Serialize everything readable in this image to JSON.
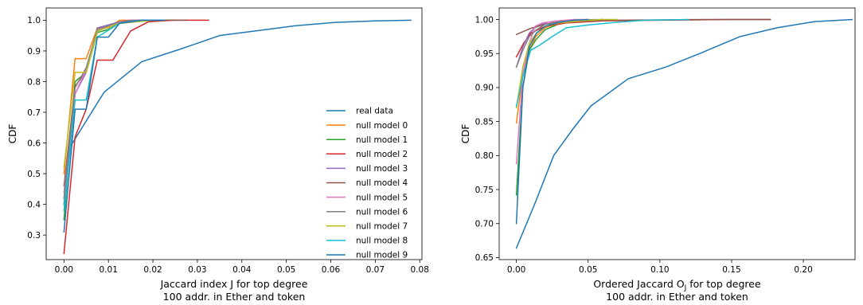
{
  "chart_data": [
    {
      "type": "line",
      "xlabel_line1": "Jaccard index J  for top degree",
      "xlabel_line2": "100 addr. in Ether and token",
      "ylabel": "CDF",
      "xlim": [
        -0.004,
        0.0805
      ],
      "ylim": [
        0.22,
        1.04
      ],
      "xticks": [
        0.0,
        0.01,
        0.02,
        0.03,
        0.04,
        0.05,
        0.06,
        0.07,
        0.08
      ],
      "xtick_labels": [
        "0.00",
        "0.01",
        "0.02",
        "0.03",
        "0.04",
        "0.05",
        "0.06",
        "0.07",
        "0.08"
      ],
      "yticks": [
        0.3,
        0.4,
        0.5,
        0.6,
        0.7,
        0.8,
        0.9,
        1.0
      ],
      "ytick_labels": [
        "0.3",
        "0.4",
        "0.5",
        "0.6",
        "0.7",
        "0.8",
        "0.9",
        "1.0"
      ],
      "legend_position": "lower-right",
      "grid": false,
      "series": [
        {
          "name": "real data",
          "color": "#1f77b4",
          "x": [
            0.0,
            0.0015,
            0.009,
            0.0175,
            0.026,
            0.035,
            0.043,
            0.052,
            0.061,
            0.07,
            0.078
          ],
          "y": [
            0.4,
            0.59,
            0.765,
            0.865,
            0.905,
            0.95,
            0.965,
            0.982,
            0.993,
            0.998,
            1.0
          ]
        },
        {
          "name": "null model 0",
          "color": "#ff7f0e",
          "x": [
            0.0,
            0.0025,
            0.005,
            0.0075,
            0.01,
            0.0125,
            0.015,
            0.023
          ],
          "y": [
            0.5,
            0.875,
            0.875,
            0.975,
            0.975,
            1.0,
            1.0,
            1.0
          ]
        },
        {
          "name": "null model 1",
          "color": "#2ca02c",
          "x": [
            0.0,
            0.0025,
            0.005,
            0.0075,
            0.01,
            0.0125,
            0.02,
            0.025
          ],
          "y": [
            0.35,
            0.8,
            0.83,
            0.96,
            0.97,
            0.99,
            1.0,
            1.0
          ]
        },
        {
          "name": "null model 2",
          "color": "#d62728",
          "x": [
            0.0,
            0.0025,
            0.005,
            0.0075,
            0.011,
            0.015,
            0.019,
            0.0245,
            0.0325
          ],
          "y": [
            0.24,
            0.62,
            0.71,
            0.87,
            0.87,
            0.965,
            0.995,
            1.0,
            1.0
          ]
        },
        {
          "name": "null model 3",
          "color": "#9467bd",
          "x": [
            0.0,
            0.0025,
            0.005,
            0.0075,
            0.0125,
            0.015,
            0.02
          ],
          "y": [
            0.42,
            0.76,
            0.83,
            0.975,
            0.995,
            1.0,
            1.0
          ]
        },
        {
          "name": "null model 4",
          "color": "#8c564b",
          "x": [
            0.0,
            0.0025,
            0.005,
            0.0075,
            0.0125,
            0.017,
            0.0275
          ],
          "y": [
            0.46,
            0.785,
            0.835,
            0.965,
            0.99,
            1.0,
            1.0
          ]
        },
        {
          "name": "null model 5",
          "color": "#e377c2",
          "x": [
            0.0,
            0.0025,
            0.005,
            0.0075,
            0.0125,
            0.0175,
            0.0225
          ],
          "y": [
            0.44,
            0.76,
            0.84,
            0.965,
            0.995,
            1.0,
            1.0
          ]
        },
        {
          "name": "null model 6",
          "color": "#7f7f7f",
          "x": [
            0.0,
            0.0025,
            0.005,
            0.0075,
            0.0125,
            0.0175,
            0.02
          ],
          "y": [
            0.42,
            0.78,
            0.845,
            0.97,
            0.995,
            1.0,
            1.0
          ]
        },
        {
          "name": "null model 7",
          "color": "#bcbd22",
          "x": [
            0.0,
            0.0025,
            0.005,
            0.0075,
            0.0125,
            0.02
          ],
          "y": [
            0.52,
            0.83,
            0.83,
            0.965,
            0.99,
            1.0
          ]
        },
        {
          "name": "null model 8",
          "color": "#17becf",
          "x": [
            0.0,
            0.0025,
            0.005,
            0.0075,
            0.0125,
            0.0175,
            0.0225
          ],
          "y": [
            0.38,
            0.74,
            0.74,
            0.945,
            0.99,
            1.0,
            1.0
          ]
        },
        {
          "name": "null model 9",
          "color": "#1f77b4",
          "x": [
            0.0,
            0.0025,
            0.005,
            0.0075,
            0.01,
            0.0125,
            0.0175,
            0.0225
          ],
          "y": [
            0.31,
            0.71,
            0.71,
            0.945,
            0.945,
            0.99,
            1.0,
            1.0
          ]
        }
      ]
    },
    {
      "type": "line",
      "xlabel_line1": "Ordered Jaccard O",
      "xlabel_sub": "J",
      "xlabel_line1_tail": " for top degree",
      "xlabel_line2": "100 addr. in Ether and token",
      "ylabel": "CDF",
      "xlim": [
        -0.012,
        0.236
      ],
      "ylim": [
        0.647,
        1.017
      ],
      "xticks": [
        0.0,
        0.05,
        0.1,
        0.15,
        0.2
      ],
      "xtick_labels": [
        "0.00",
        "0.05",
        "0.10",
        "0.15",
        "0.20"
      ],
      "yticks": [
        0.65,
        0.7,
        0.75,
        0.8,
        0.85,
        0.9,
        0.95,
        1.0
      ],
      "ytick_labels": [
        "0.65",
        "0.70",
        "0.75",
        "0.80",
        "0.85",
        "0.90",
        "0.95",
        "1.00"
      ],
      "grid": false,
      "series": [
        {
          "name": "real data",
          "color": "#1f77b4",
          "x": [
            0.0,
            0.013,
            0.026,
            0.039,
            0.052,
            0.078,
            0.104,
            0.13,
            0.156,
            0.182,
            0.208,
            0.234
          ],
          "y": [
            0.664,
            0.73,
            0.8,
            0.838,
            0.873,
            0.913,
            0.93,
            0.952,
            0.975,
            0.988,
            0.997,
            1.0
          ]
        },
        {
          "name": "null model 0",
          "color": "#ff7f0e",
          "x": [
            0.0,
            0.0045,
            0.009,
            0.0135,
            0.02,
            0.03,
            0.045,
            0.06
          ],
          "y": [
            0.848,
            0.92,
            0.955,
            0.975,
            0.988,
            0.995,
            0.999,
            1.0
          ]
        },
        {
          "name": "null model 1",
          "color": "#2ca02c",
          "x": [
            0.0,
            0.0045,
            0.009,
            0.0135,
            0.02,
            0.03,
            0.045,
            0.055
          ],
          "y": [
            0.742,
            0.9,
            0.955,
            0.97,
            0.985,
            0.994,
            0.999,
            1.0
          ]
        },
        {
          "name": "null model 2",
          "color": "#d62728",
          "x": [
            0.0,
            0.005,
            0.01,
            0.02,
            0.035,
            0.06,
            0.1,
            0.15,
            0.177
          ],
          "y": [
            0.945,
            0.965,
            0.98,
            0.99,
            0.995,
            0.998,
            0.999,
            1.0,
            1.0
          ]
        },
        {
          "name": "null model 3",
          "color": "#9467bd",
          "x": [
            0.0,
            0.0045,
            0.009,
            0.014,
            0.022,
            0.035,
            0.05
          ],
          "y": [
            0.93,
            0.96,
            0.98,
            0.99,
            0.996,
            0.999,
            1.0
          ]
        },
        {
          "name": "null model 4",
          "color": "#8c564b",
          "x": [
            0.0,
            0.01,
            0.02,
            0.04,
            0.07,
            0.1,
            0.13,
            0.177
          ],
          "y": [
            0.978,
            0.987,
            0.993,
            0.997,
            0.999,
            0.9995,
            1.0,
            1.0
          ]
        },
        {
          "name": "null model 5",
          "color": "#e377c2",
          "x": [
            0.0,
            0.0045,
            0.009,
            0.013,
            0.018,
            0.028,
            0.04,
            0.05
          ],
          "y": [
            0.788,
            0.92,
            0.965,
            0.99,
            0.995,
            0.998,
            1.0,
            1.0
          ]
        },
        {
          "name": "null model 6",
          "color": "#7f7f7f",
          "x": [
            0.0,
            0.0045,
            0.009,
            0.014,
            0.02,
            0.03,
            0.045,
            0.06
          ],
          "y": [
            0.93,
            0.955,
            0.975,
            0.985,
            0.993,
            0.997,
            0.999,
            1.0
          ]
        },
        {
          "name": "null model 7",
          "color": "#bcbd22",
          "x": [
            0.0,
            0.0045,
            0.009,
            0.014,
            0.02,
            0.03,
            0.045,
            0.06,
            0.07
          ],
          "y": [
            0.87,
            0.93,
            0.965,
            0.98,
            0.99,
            0.995,
            0.998,
            1.0,
            1.0
          ]
        },
        {
          "name": "null model 8",
          "color": "#17becf",
          "x": [
            0.0,
            0.005,
            0.01,
            0.016,
            0.025,
            0.035,
            0.05,
            0.07,
            0.09,
            0.12
          ],
          "y": [
            0.872,
            0.92,
            0.955,
            0.962,
            0.975,
            0.988,
            0.992,
            0.996,
            0.999,
            1.0
          ]
        },
        {
          "name": "null model 9",
          "color": "#1f77b4",
          "x": [
            0.0,
            0.0045,
            0.009,
            0.014,
            0.02,
            0.03,
            0.04,
            0.05
          ],
          "y": [
            0.7,
            0.9,
            0.96,
            0.98,
            0.99,
            0.996,
            0.999,
            1.0
          ]
        }
      ]
    }
  ]
}
